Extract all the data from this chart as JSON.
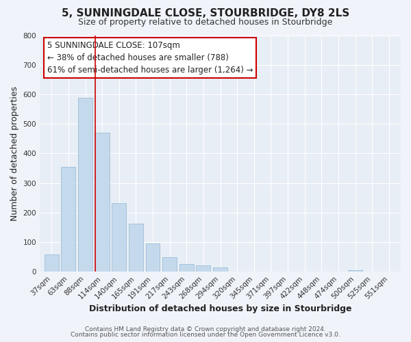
{
  "title": "5, SUNNINGDALE CLOSE, STOURBRIDGE, DY8 2LS",
  "subtitle": "Size of property relative to detached houses in Stourbridge",
  "xlabel": "Distribution of detached houses by size in Stourbridge",
  "ylabel": "Number of detached properties",
  "bar_labels": [
    "37sqm",
    "63sqm",
    "88sqm",
    "114sqm",
    "140sqm",
    "165sqm",
    "191sqm",
    "217sqm",
    "243sqm",
    "268sqm",
    "294sqm",
    "320sqm",
    "345sqm",
    "371sqm",
    "397sqm",
    "422sqm",
    "448sqm",
    "474sqm",
    "500sqm",
    "525sqm",
    "551sqm"
  ],
  "bar_values": [
    58,
    355,
    588,
    470,
    232,
    163,
    95,
    48,
    27,
    22,
    15,
    0,
    0,
    0,
    0,
    0,
    0,
    0,
    5,
    0,
    0
  ],
  "bar_color": "#c5d9ed",
  "bar_edge_color": "#9bbdd6",
  "highlight_line_color": "#cc0000",
  "ylim": [
    0,
    800
  ],
  "yticks": [
    0,
    100,
    200,
    300,
    400,
    500,
    600,
    700,
    800
  ],
  "annotation_line1": "5 SUNNINGDALE CLOSE: 107sqm",
  "annotation_line2": "← 38% of detached houses are smaller (788)",
  "annotation_line3": "61% of semi-detached houses are larger (1,264) →",
  "footer_line1": "Contains HM Land Registry data © Crown copyright and database right 2024.",
  "footer_line2": "Contains public sector information licensed under the Open Government Licence v3.0.",
  "figure_bg": "#f0f4fa",
  "plot_bg": "#e8eef5",
  "grid_color": "#ffffff",
  "title_fontsize": 11,
  "subtitle_fontsize": 9,
  "axis_label_fontsize": 9,
  "tick_fontsize": 7.5,
  "footer_fontsize": 6.5,
  "annotation_fontsize": 8.5
}
